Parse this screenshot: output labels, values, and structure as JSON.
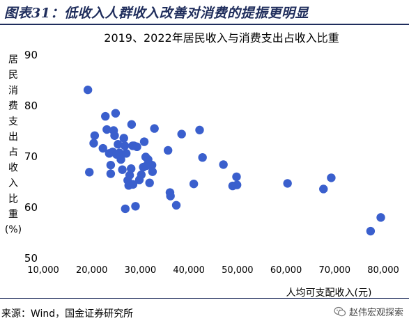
{
  "figure": {
    "label": "图表31：低收入人群收入改善对消费的提振更明显",
    "source": "来源：Wind，国金证券研究所",
    "brand_name": "赵伟宏观探索",
    "brand_icon": "wechat-icon"
  },
  "chart_data": {
    "type": "scatter",
    "title": "2019、2022年居民收入与消费支出占收入比重",
    "xlabel": "人均可支配收入(元)",
    "ylabel": "居民消费支出占收入比重(%)",
    "ylabel_chars": [
      "居",
      "民",
      "消",
      "费",
      "支",
      "出",
      "占",
      "收",
      "入",
      "比",
      "重",
      "(%)"
    ],
    "xlim": [
      10000,
      80000
    ],
    "ylim": [
      50,
      90
    ],
    "x_ticks": [
      10000,
      20000,
      30000,
      40000,
      50000,
      60000,
      70000,
      80000
    ],
    "x_tick_labels": [
      "10,000",
      "20,000",
      "30,000",
      "40,000",
      "50,000",
      "60,000",
      "70,000",
      "80,000"
    ],
    "y_ticks": [
      50,
      60,
      70,
      80,
      90
    ],
    "y_tick_labels": [
      "50",
      "60",
      "70",
      "80",
      "90"
    ],
    "grid": false,
    "color": "#3a5fcd",
    "points": [
      {
        "x": 19200,
        "y": 83.0
      },
      {
        "x": 19500,
        "y": 66.8
      },
      {
        "x": 20400,
        "y": 72.5
      },
      {
        "x": 20600,
        "y": 74.0
      },
      {
        "x": 22300,
        "y": 71.5
      },
      {
        "x": 22800,
        "y": 77.8
      },
      {
        "x": 23100,
        "y": 75.2
      },
      {
        "x": 23600,
        "y": 70.5
      },
      {
        "x": 23900,
        "y": 68.2
      },
      {
        "x": 23900,
        "y": 66.5
      },
      {
        "x": 24300,
        "y": 70.8
      },
      {
        "x": 24500,
        "y": 75.0
      },
      {
        "x": 24700,
        "y": 74.0
      },
      {
        "x": 24900,
        "y": 78.4
      },
      {
        "x": 25100,
        "y": 70.3
      },
      {
        "x": 25400,
        "y": 72.3
      },
      {
        "x": 25700,
        "y": 70.6
      },
      {
        "x": 26000,
        "y": 69.3
      },
      {
        "x": 26300,
        "y": 67.3
      },
      {
        "x": 26600,
        "y": 73.5
      },
      {
        "x": 26800,
        "y": 72.0
      },
      {
        "x": 26900,
        "y": 59.6
      },
      {
        "x": 27100,
        "y": 70.5
      },
      {
        "x": 27400,
        "y": 65.2
      },
      {
        "x": 27600,
        "y": 64.2
      },
      {
        "x": 27800,
        "y": 66.2
      },
      {
        "x": 28100,
        "y": 67.5
      },
      {
        "x": 28200,
        "y": 76.2
      },
      {
        "x": 28400,
        "y": 72.0
      },
      {
        "x": 28500,
        "y": 64.4
      },
      {
        "x": 28700,
        "y": 72.0
      },
      {
        "x": 29000,
        "y": 60.1
      },
      {
        "x": 29300,
        "y": 71.8
      },
      {
        "x": 29800,
        "y": 65.3
      },
      {
        "x": 30200,
        "y": 66.3
      },
      {
        "x": 30600,
        "y": 67.8
      },
      {
        "x": 30800,
        "y": 72.8
      },
      {
        "x": 31100,
        "y": 69.8
      },
      {
        "x": 31300,
        "y": 68.1
      },
      {
        "x": 31600,
        "y": 69.3
      },
      {
        "x": 31900,
        "y": 64.7
      },
      {
        "x": 32400,
        "y": 68.2
      },
      {
        "x": 32500,
        "y": 66.9
      },
      {
        "x": 32900,
        "y": 75.4
      },
      {
        "x": 35700,
        "y": 71.1
      },
      {
        "x": 36100,
        "y": 62.8
      },
      {
        "x": 36200,
        "y": 62.1
      },
      {
        "x": 37400,
        "y": 60.3
      },
      {
        "x": 38500,
        "y": 74.3
      },
      {
        "x": 41000,
        "y": 64.5
      },
      {
        "x": 42200,
        "y": 75.1
      },
      {
        "x": 42800,
        "y": 69.7
      },
      {
        "x": 47100,
        "y": 68.3
      },
      {
        "x": 49000,
        "y": 64.1
      },
      {
        "x": 49800,
        "y": 65.9
      },
      {
        "x": 49900,
        "y": 64.3
      },
      {
        "x": 60300,
        "y": 64.6
      },
      {
        "x": 67700,
        "y": 63.5
      },
      {
        "x": 69300,
        "y": 65.7
      },
      {
        "x": 77400,
        "y": 55.2
      },
      {
        "x": 79500,
        "y": 57.9
      }
    ]
  }
}
